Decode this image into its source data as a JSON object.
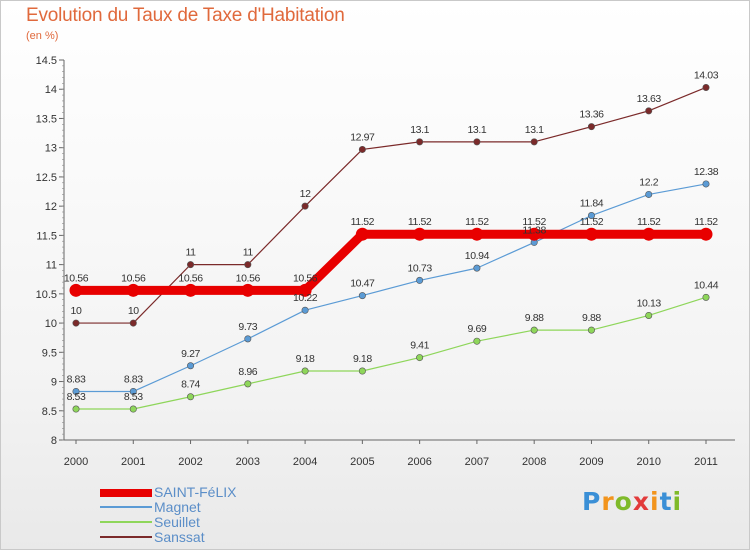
{
  "title": "Evolution du Taux de Taxe d'Habitation",
  "subtitle": "(en %)",
  "logo": {
    "text": "Proxiti",
    "letters": [
      "P",
      "r",
      "o",
      "x",
      "i",
      "t",
      "i"
    ],
    "colors": [
      "#3a8fd6",
      "#f2941c",
      "#7fba2a",
      "#e23b3b",
      "#f2941c",
      "#3a8fd6",
      "#7fba2a"
    ]
  },
  "chart_data": {
    "type": "line",
    "title": "Evolution du Taux de Taxe d'Habitation",
    "subtitle": "(en %)",
    "x": [
      "2000",
      "2001",
      "2002",
      "2003",
      "2004",
      "2005",
      "2006",
      "2007",
      "2008",
      "2009",
      "2010",
      "2011"
    ],
    "ylim": [
      8,
      14.5
    ],
    "yticks": [
      "8",
      "8.5",
      "9",
      "9.5",
      "10",
      "10.5",
      "11",
      "11.5",
      "12",
      "12.5",
      "13",
      "13.5",
      "14",
      "14.5"
    ],
    "grid": false,
    "legend_position": "bottom-left",
    "series": [
      {
        "name": "SAINT-FéLIX",
        "color": "#e80000",
        "values": [
          10.56,
          10.56,
          10.56,
          10.56,
          10.56,
          11.52,
          11.52,
          11.52,
          11.52,
          11.52,
          11.52,
          11.52
        ],
        "labels": [
          "10.56",
          "10.56",
          "10.56",
          "10.56",
          "10.56",
          "11.52",
          "11.52",
          "11.52",
          "11.52",
          "11.52",
          "11.52",
          "11.52"
        ]
      },
      {
        "name": "Magnet",
        "color": "#5b9bd5",
        "values": [
          8.83,
          8.83,
          9.27,
          9.73,
          10.22,
          10.47,
          10.73,
          10.94,
          11.38,
          11.84,
          12.2,
          12.38
        ],
        "labels": [
          "8.83",
          "8.83",
          "9.27",
          "9.73",
          "10.22",
          "10.47",
          "10.73",
          "10.94",
          "11.38",
          "11.84",
          "12.2",
          "12.38"
        ]
      },
      {
        "name": "Seuillet",
        "color": "#8ed65a",
        "values": [
          8.53,
          8.53,
          8.74,
          8.96,
          9.18,
          9.18,
          9.41,
          9.69,
          9.88,
          9.88,
          10.13,
          10.44
        ],
        "labels": [
          "8.53",
          "8.53",
          "8.74",
          "8.96",
          "9.18",
          "9.18",
          "9.41",
          "9.69",
          "9.88",
          "9.88",
          "10.13",
          "10.44"
        ]
      },
      {
        "name": "Sanssat",
        "color": "#7b2a2a",
        "values": [
          10,
          10,
          11,
          11,
          12,
          12.97,
          13.1,
          13.1,
          13.1,
          13.36,
          13.63,
          14.03
        ],
        "labels": [
          "10",
          "10",
          "11",
          "11",
          "12",
          "12.97",
          "13.1",
          "13.1",
          "13.1",
          "13.36",
          "13.63",
          "14.03"
        ]
      }
    ]
  }
}
